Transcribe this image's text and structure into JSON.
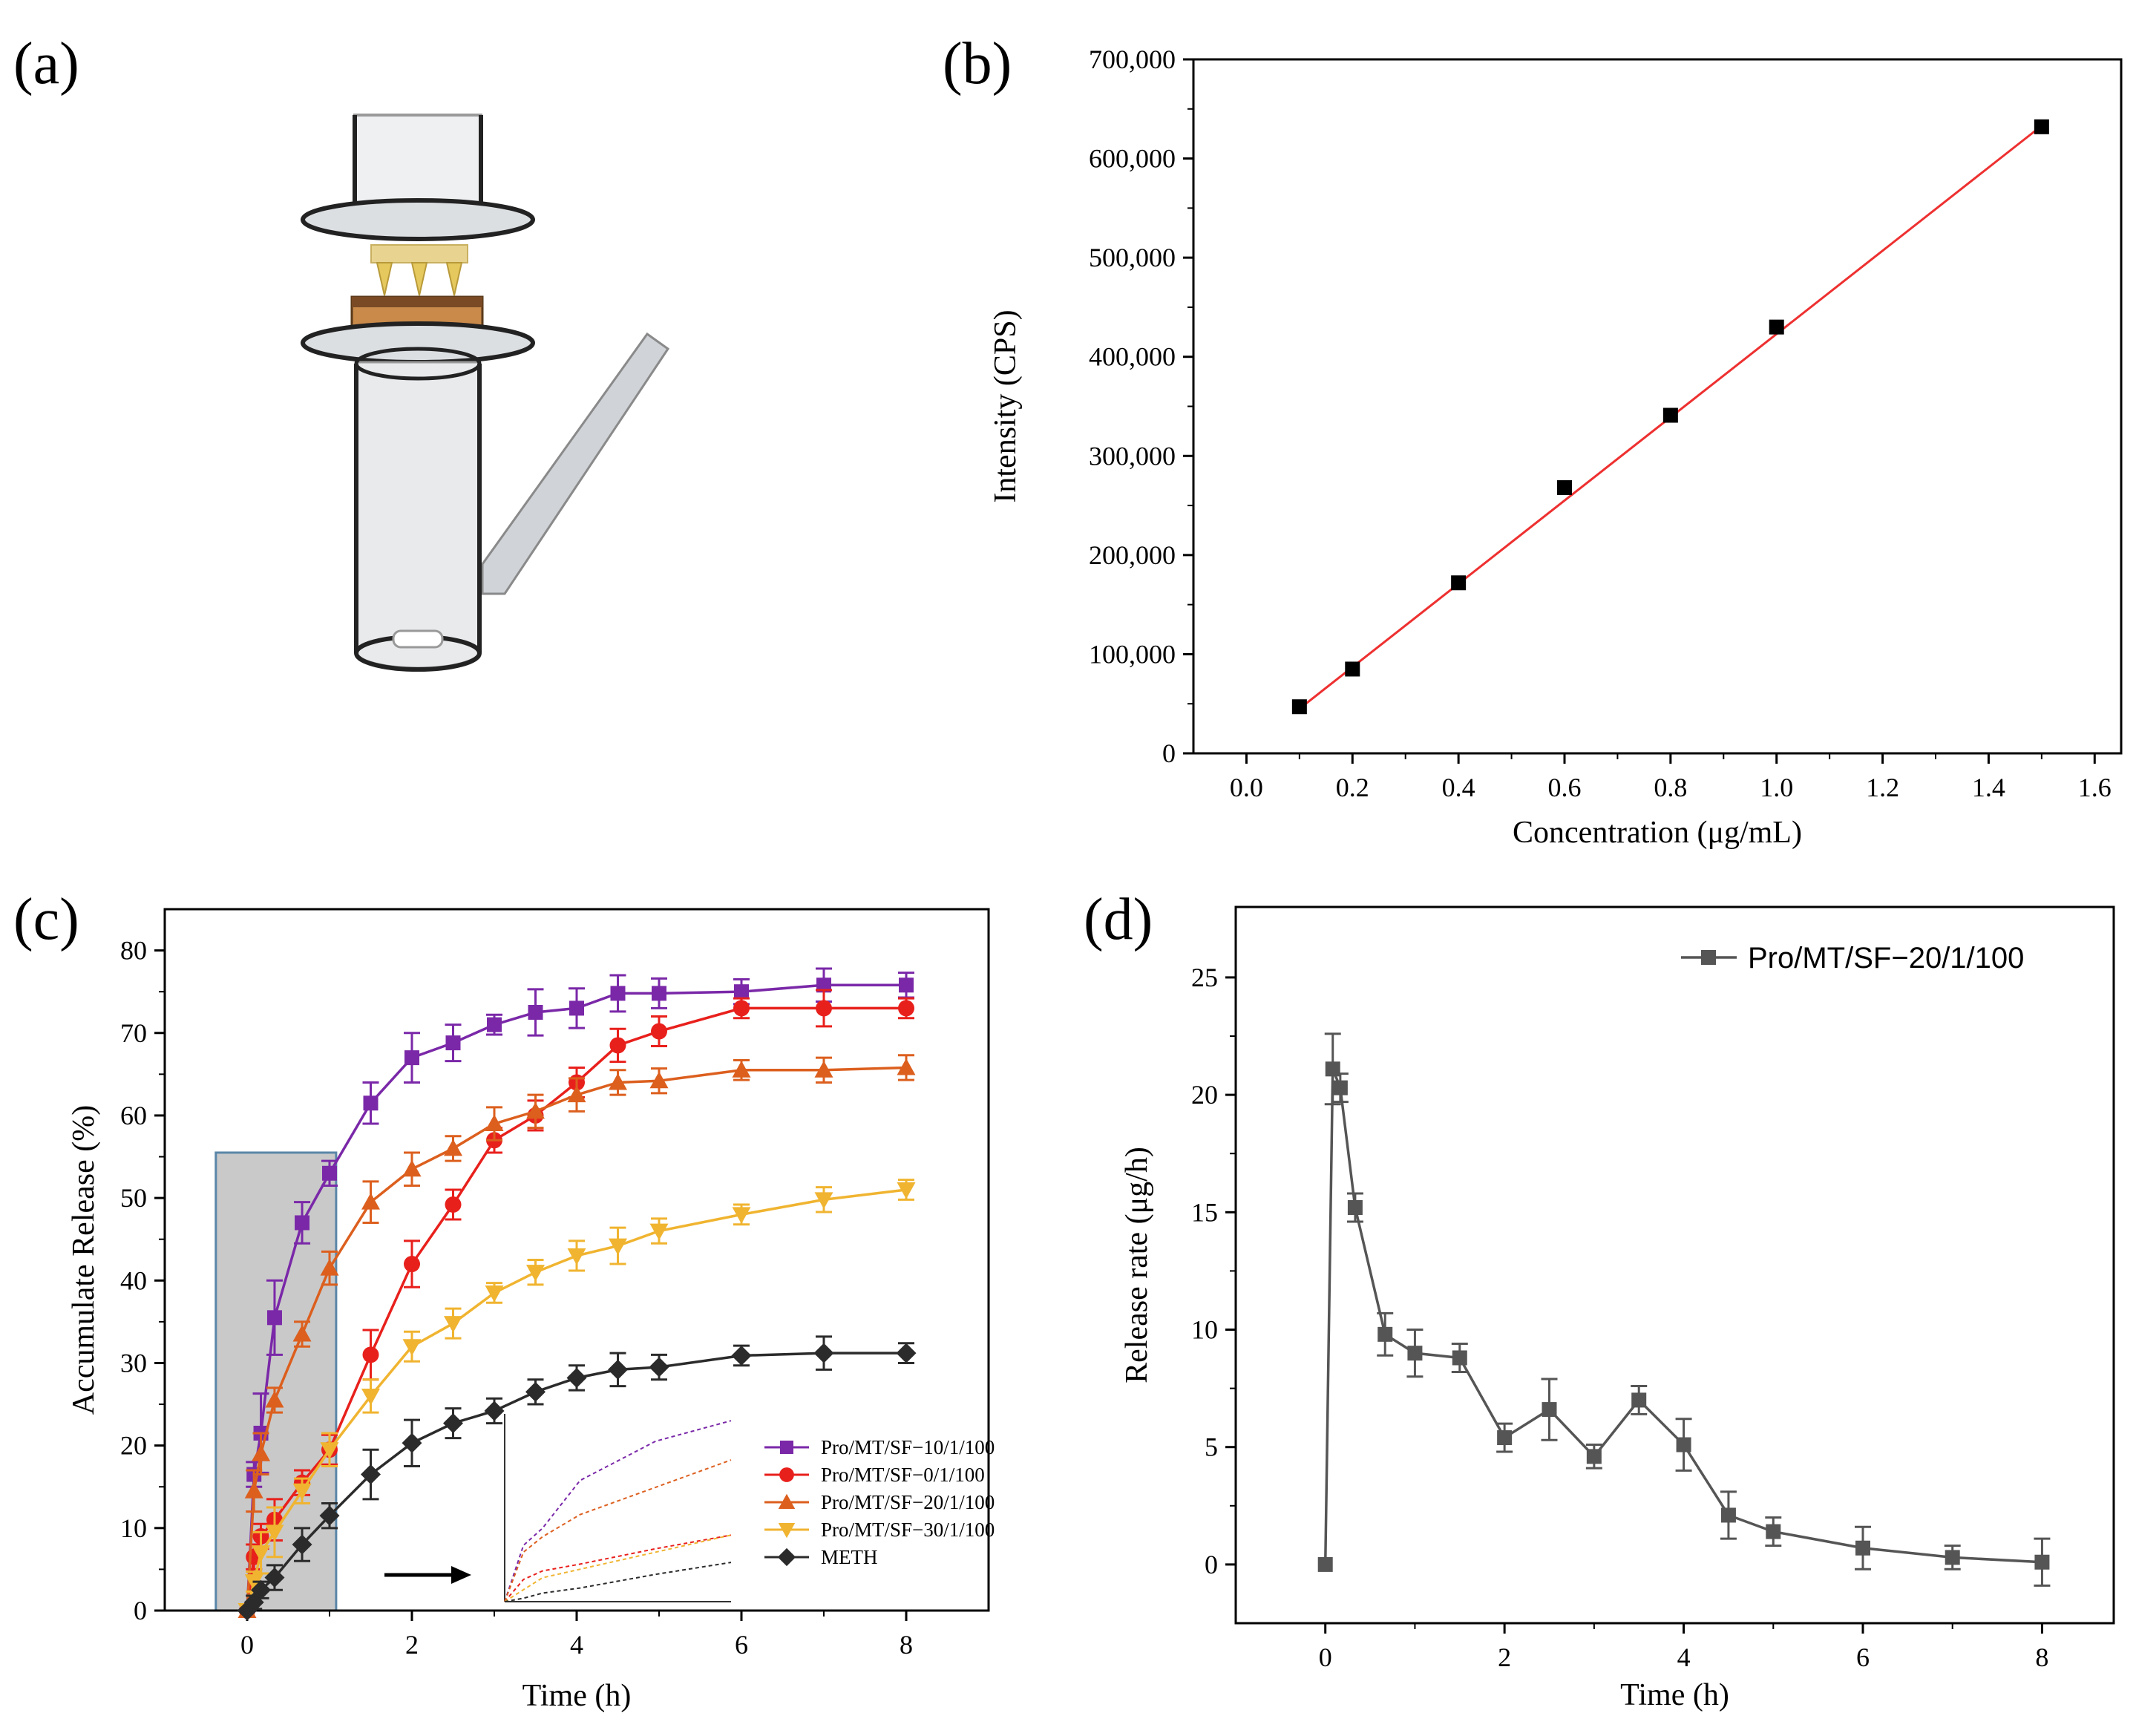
{
  "panels": {
    "a": "(a)",
    "b": "(b)",
    "c": "(c)",
    "d": "(d)"
  },
  "colors": {
    "purple": "#7a28a8",
    "red": "#e8201c",
    "orange": "#dc5f1e",
    "yellow": "#f0b430",
    "black": "#2b2b2b",
    "gray": "#555555",
    "fit": "#ee3030",
    "shade": "#c9c9c9"
  },
  "chart_data": [
    {
      "panel": "b",
      "type": "scatter",
      "xlabel": "Concentration (μg/mL)",
      "ylabel": "Intensity (CPS)",
      "xlim": [
        -0.1,
        1.65
      ],
      "ylim": [
        0,
        700000
      ],
      "xticks": [
        0.0,
        0.2,
        0.4,
        0.6,
        0.8,
        1.0,
        1.2,
        1.4,
        1.6
      ],
      "xtick_labels": [
        "0.0",
        "0.2",
        "0.4",
        "0.6",
        "0.8",
        "1.0",
        "1.2",
        "1.4",
        "1.6"
      ],
      "yticks": [
        0,
        100000,
        200000,
        300000,
        400000,
        500000,
        600000,
        700000
      ],
      "ytick_labels": [
        "0",
        "100,000",
        "200,000",
        "300,000",
        "400,000",
        "500,000",
        "600,000",
        "700,000"
      ],
      "points": {
        "x": [
          0.1,
          0.2,
          0.4,
          0.6,
          0.8,
          1.0,
          1.5
        ],
        "y": [
          47000,
          85000,
          172000,
          268000,
          341000,
          430000,
          632000
        ]
      },
      "fit_line": {
        "x": [
          0.1,
          1.5
        ],
        "y": [
          45000,
          633000
        ]
      }
    },
    {
      "panel": "c",
      "type": "line",
      "xlabel": "Time (h)",
      "ylabel": "Accumulate Release (%)",
      "xlim": [
        -1,
        9
      ],
      "ylim": [
        0,
        85
      ],
      "xticks": [
        0,
        2,
        4,
        6,
        8
      ],
      "yticks": [
        0,
        10,
        20,
        30,
        40,
        50,
        60,
        70,
        80
      ],
      "legend_position": "lower-right",
      "shaded_region": {
        "x": [
          -0.38,
          1.08
        ],
        "y": [
          0,
          55.5
        ]
      },
      "x": [
        0,
        0.083,
        0.167,
        0.333,
        0.667,
        1,
        1.5,
        2,
        2.5,
        3,
        3.5,
        4,
        4.5,
        5,
        6,
        7,
        8
      ],
      "series": [
        {
          "name": "Pro/MT/SF−10/1/100",
          "marker": "square",
          "color": "#7a28a8",
          "values": [
            0,
            16.5,
            21.5,
            35.5,
            47,
            53,
            61.5,
            67,
            68.8,
            71,
            72.5,
            73,
            74.8,
            74.8,
            75,
            75.8,
            75.8
          ],
          "errors": [
            0,
            1.5,
            4.8,
            4.5,
            2.5,
            1.5,
            2.5,
            3,
            2.2,
            1.2,
            2.8,
            2.4,
            2.2,
            1.8,
            1.5,
            2,
            1.5
          ]
        },
        {
          "name": "Pro/MT/SF−0/1/100",
          "marker": "circle",
          "color": "#e8201c",
          "values": [
            0,
            6.5,
            9,
            11,
            15.5,
            19.5,
            31,
            42,
            49.2,
            57,
            60,
            64,
            68.5,
            70.2,
            73,
            73,
            73
          ],
          "errors": [
            0,
            1.5,
            1.5,
            2.5,
            1.5,
            1.8,
            3,
            2.8,
            1.8,
            1.5,
            1.8,
            1.8,
            2,
            1.8,
            1.2,
            2.2,
            1.2
          ]
        },
        {
          "name": "Pro/MT/SF−20/1/100",
          "marker": "triangle-up",
          "color": "#dc5f1e",
          "values": [
            0,
            14.5,
            19,
            25.5,
            33.5,
            41.5,
            49.5,
            53.5,
            56,
            59,
            60.5,
            62.5,
            64,
            64.2,
            65.5,
            65.5,
            65.8
          ],
          "errors": [
            0,
            2.5,
            2.5,
            1.5,
            1.5,
            2,
            2.5,
            2,
            1.5,
            2,
            2,
            2,
            1.5,
            1.5,
            1.2,
            1.5,
            1.5
          ]
        },
        {
          "name": "Pro/MT/SF−30/1/100",
          "marker": "triangle-down",
          "color": "#f0b430",
          "values": [
            0,
            3.5,
            7,
            9.5,
            14.5,
            19.5,
            26,
            32,
            34.8,
            38.5,
            41,
            43,
            44.2,
            46,
            48,
            49.8,
            51
          ],
          "errors": [
            0,
            1.2,
            2.5,
            3,
            1.5,
            2,
            2,
            1.8,
            1.8,
            1.2,
            1.5,
            1.8,
            2.2,
            1.5,
            1.2,
            1.5,
            1.2
          ]
        },
        {
          "name": "METH",
          "marker": "diamond",
          "color": "#2b2b2b",
          "values": [
            0,
            1,
            2.5,
            4,
            8,
            11.5,
            16.5,
            20.3,
            22.7,
            24.2,
            26.5,
            28.2,
            29.2,
            29.5,
            30.9,
            31.2,
            31.2
          ],
          "errors": [
            0,
            0.8,
            1,
            1.5,
            2,
            1.5,
            3,
            2.8,
            1.8,
            1.5,
            1.5,
            1.5,
            2,
            1.5,
            1.2,
            2,
            1.2
          ]
        }
      ]
    },
    {
      "panel": "d",
      "type": "line",
      "xlabel": "Time (h)",
      "ylabel": "Release rate (μg/h)",
      "xlim": [
        -1,
        8.8
      ],
      "ylim": [
        -2.5,
        28
      ],
      "xticks": [
        0,
        2,
        4,
        6,
        8
      ],
      "yticks": [
        0,
        5,
        10,
        15,
        20,
        25
      ],
      "legend_position": "top-right",
      "series": [
        {
          "name": "Pro/MT/SF−20/1/100",
          "marker": "square",
          "color": "#555555",
          "x": [
            0,
            0.083,
            0.167,
            0.333,
            0.667,
            1,
            1.5,
            2,
            2.5,
            3,
            3.5,
            4,
            4.5,
            5,
            6,
            7,
            8
          ],
          "values": [
            0,
            21.1,
            20.3,
            15.2,
            9.8,
            9.0,
            8.8,
            5.4,
            6.6,
            4.6,
            7.0,
            5.1,
            2.1,
            1.4,
            0.7,
            0.3,
            0.1
          ],
          "errors": [
            0,
            1.5,
            0.6,
            0.6,
            0.9,
            1.0,
            0.6,
            0.6,
            1.3,
            0.5,
            0.6,
            1.1,
            1.0,
            0.6,
            0.9,
            0.5,
            1.0
          ]
        }
      ]
    }
  ]
}
